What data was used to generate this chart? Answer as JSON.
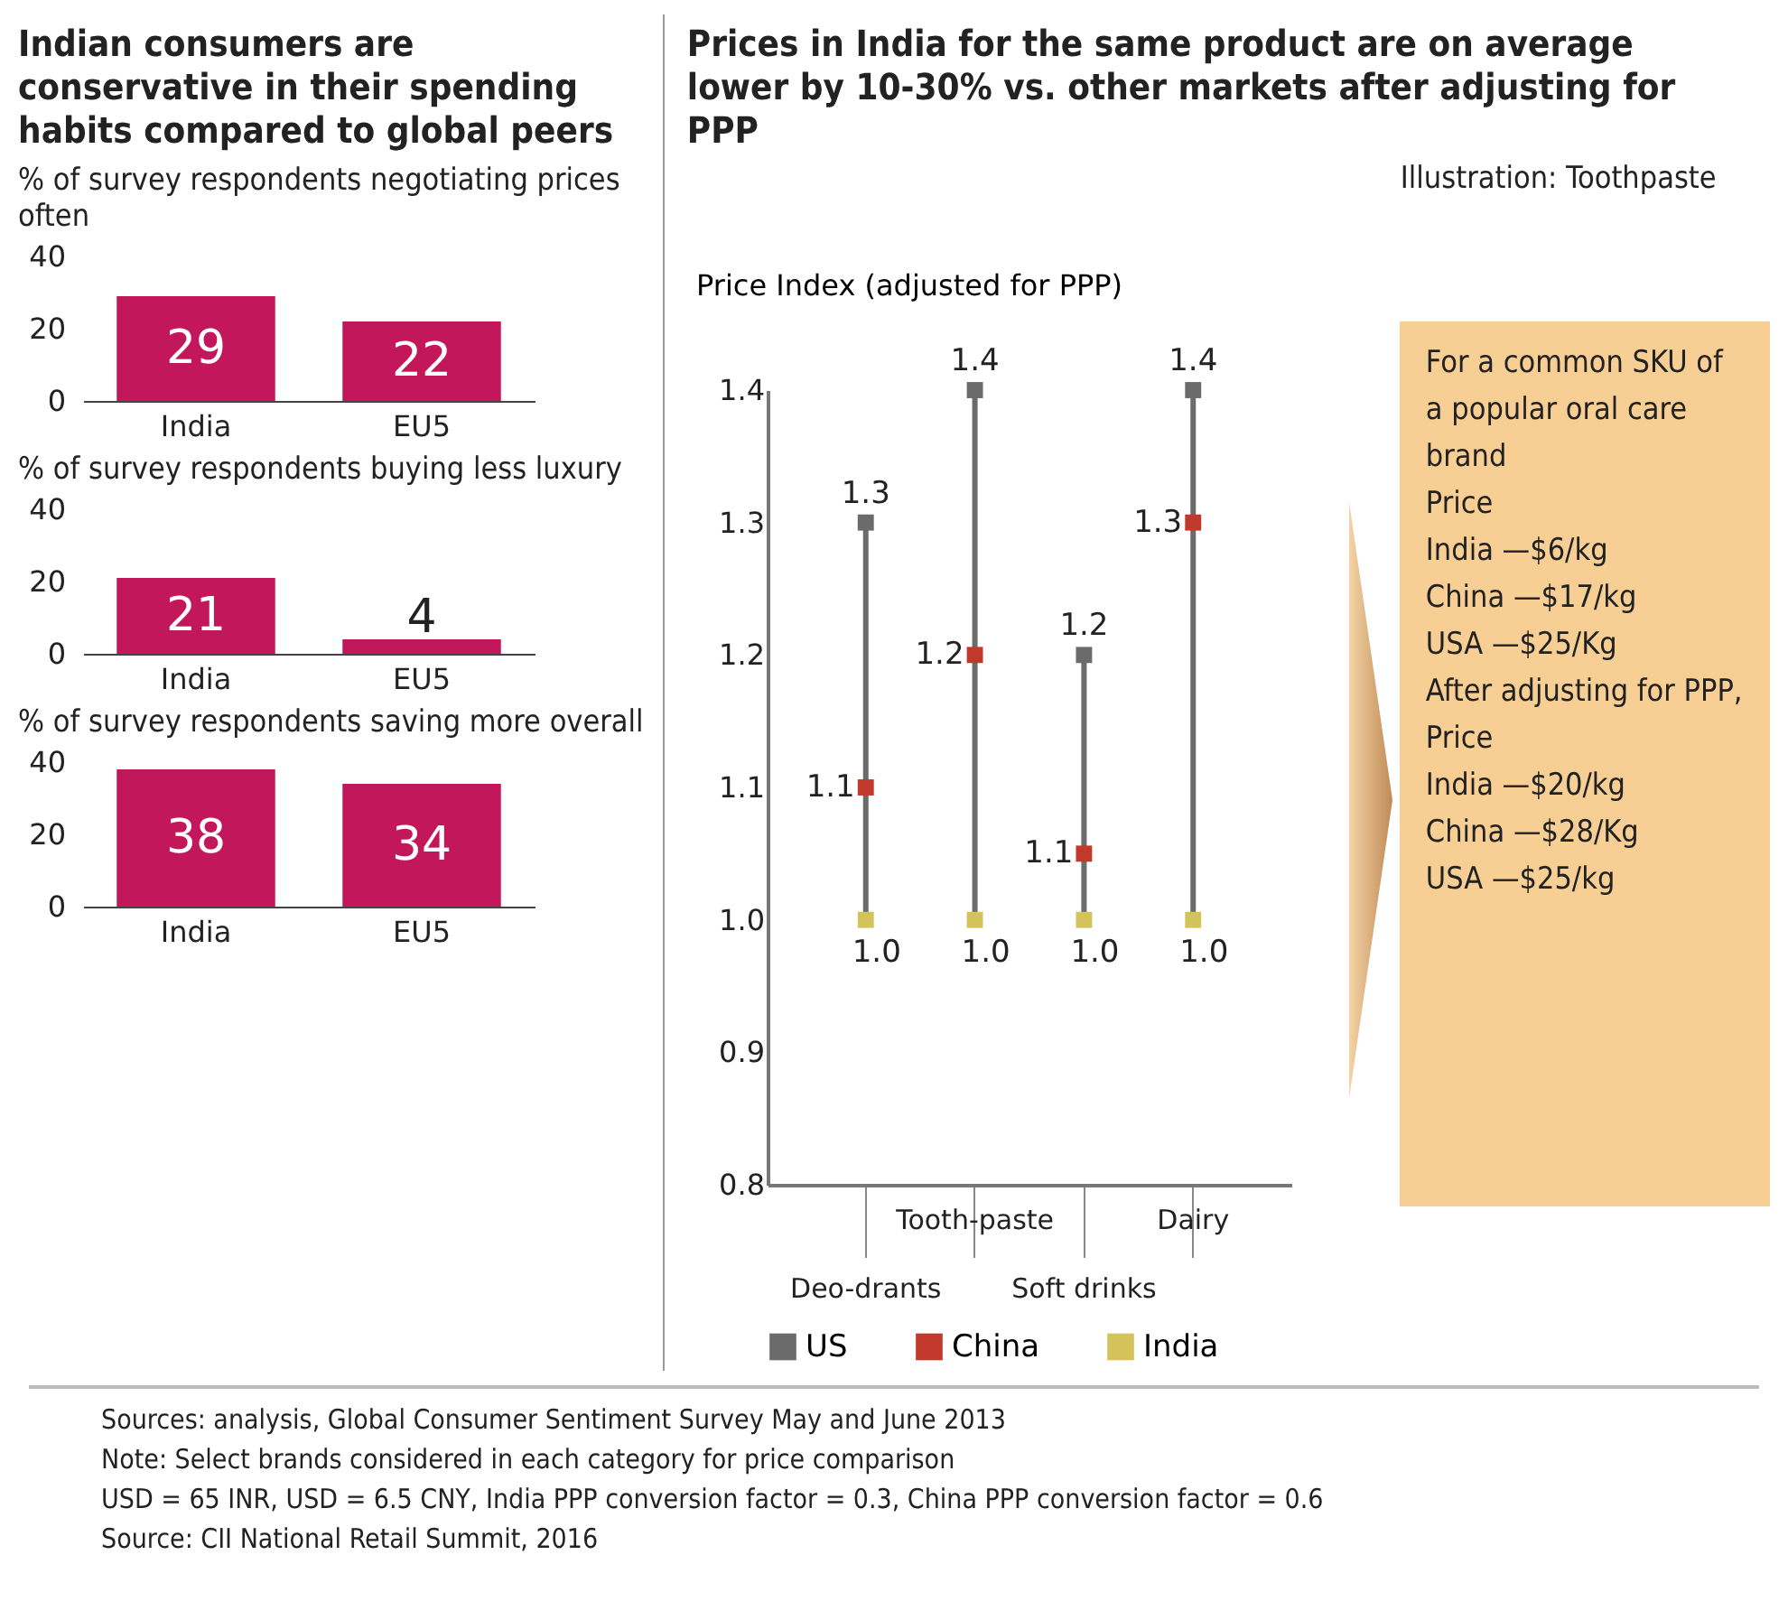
{
  "chart_data": [
    {
      "type": "bar",
      "title": "Indian consumers are conservative in their spending habits compared to global peers",
      "subtitle": "% of survey respondents negotiating prices often",
      "categories": [
        "India",
        "EU5"
      ],
      "values": [
        29,
        22
      ],
      "color": "#c2185b",
      "ylim": [
        0,
        40
      ],
      "yticks": [
        0,
        20,
        40
      ],
      "data_labels": true
    },
    {
      "type": "bar",
      "subtitle": "% of survey respondents buying less luxury",
      "categories": [
        "India",
        "EU5"
      ],
      "values": [
        21,
        4
      ],
      "color": "#c2185b",
      "ylim": [
        0,
        40
      ],
      "yticks": [
        0,
        20,
        40
      ],
      "data_labels": true
    },
    {
      "type": "bar",
      "subtitle": "% of survey respondents saving more overall",
      "categories": [
        "India",
        "EU5"
      ],
      "values": [
        38,
        34
      ],
      "color": "#c2185b",
      "ylim": [
        0,
        40
      ],
      "yticks": [
        0,
        20,
        40
      ],
      "data_labels": true
    },
    {
      "type": "scatter",
      "title": "Prices in India for the same product are on average lower by 10-30% vs. other markets after adjusting for PPP",
      "ylabel": "Price Index (adjusted for PPP)",
      "categories": [
        "Deo-drants",
        "Tooth-paste",
        "Soft drinks",
        "Dairy"
      ],
      "ylim": [
        0.8,
        1.4
      ],
      "yticks": [
        0.8,
        0.9,
        {
          "value": 1,
          "label": "1.0"
        },
        1.1,
        1.2,
        1.3,
        1.4
      ],
      "legend": "bottom",
      "marker": "square",
      "series": [
        {
          "name": "US",
          "color": "#6b6b6b",
          "values": [
            1.3,
            1.4,
            1.2,
            1.4
          ],
          "value_labels": [
            "1.3",
            "1.4",
            "1.2",
            "1.4"
          ]
        },
        {
          "name": "China",
          "color": "#c0392b",
          "values": [
            1.1,
            1.2,
            1.05,
            1.3
          ],
          "value_labels": [
            "1.1",
            "1.2",
            "1.1",
            "1.3"
          ]
        },
        {
          "name": "India",
          "color": "#d4c35a",
          "values": [
            1,
            1,
            1,
            1
          ],
          "value_labels": [
            "1.0",
            "1.0",
            "1.0",
            "1.0"
          ]
        }
      ]
    },
    {
      "type": "other",
      "title": "Illustration: Toothpaste",
      "annotations": [
        "For a common SKU of a popular oral care brand",
        "Price",
        "India —$6/kg",
        "China —$17/kg",
        "USA —$25/Kg",
        "After adjusting for PPP,",
        "Price",
        "India —$20/kg",
        "China —$28/Kg",
        "USA —$25/kg"
      ]
    },
    {
      "type": "other",
      "annotations": [
        "Sources: analysis, Global Consumer Sentiment Survey May and June 2013",
        "Note: Select brands considered in each category for price comparison",
        "USD = 65 INR, USD = 6.5 CNY, India PPP conversion factor = 0.3, China PPP conversion factor = 0.6",
        "Source: CII National Retail Summit, 2016"
      ]
    }
  ]
}
